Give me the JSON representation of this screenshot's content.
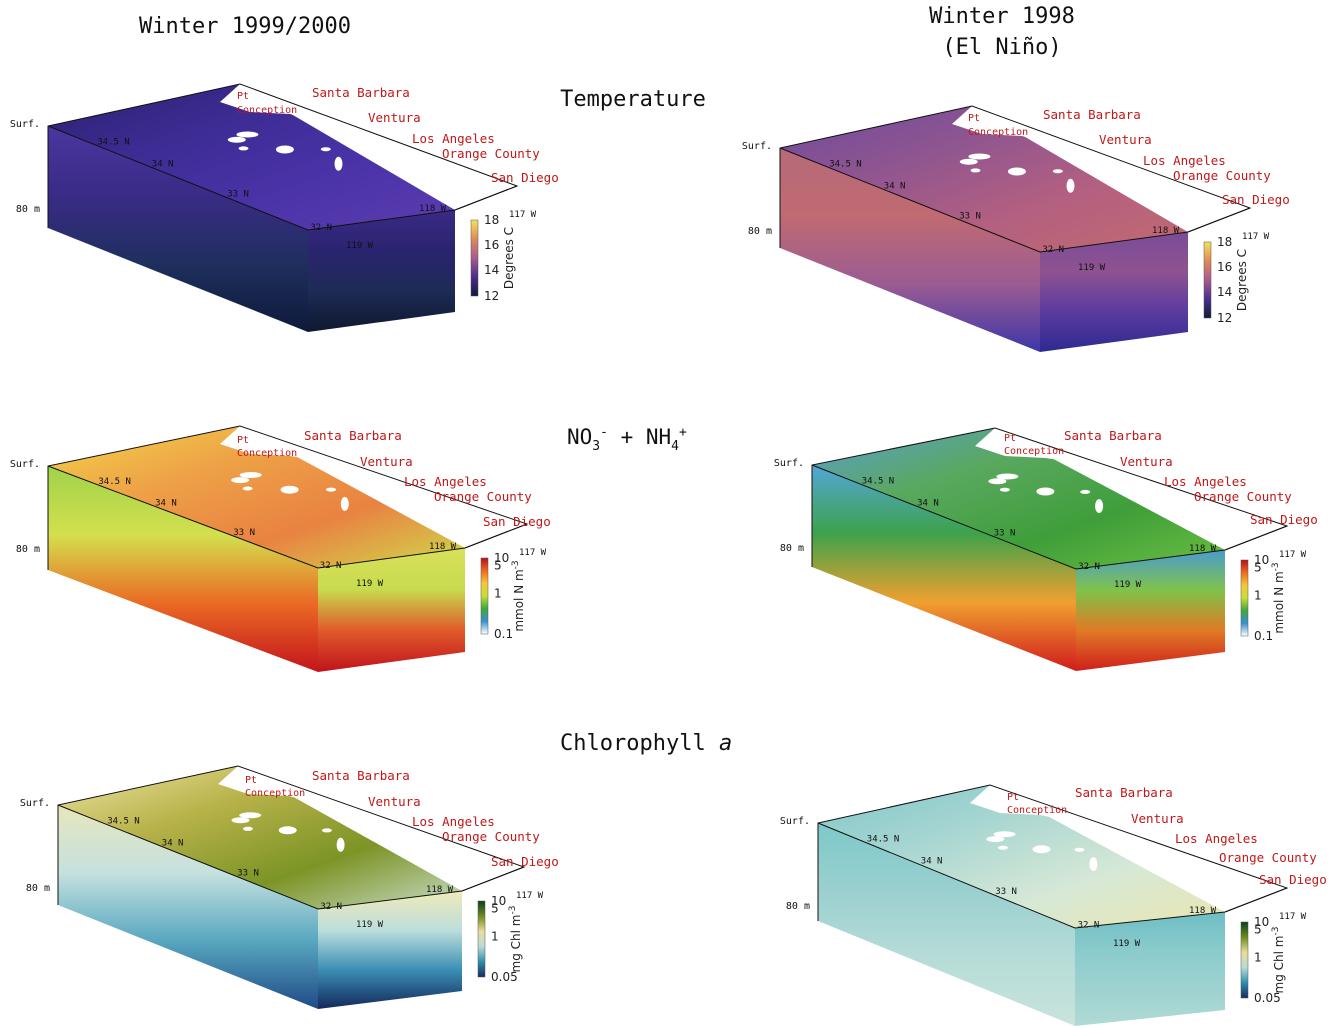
{
  "columns": [
    {
      "title": "Winter 1999/2000"
    },
    {
      "title": "Winter 1998",
      "subtitle": "(El Niño)"
    }
  ],
  "rows": [
    {
      "title_html": "Temperature",
      "base": "NO",
      "sup1": "",
      "sub1": ""
    },
    {
      "title_html": "",
      "base": "NO",
      "sub1": "3",
      "sup1": "-",
      "mid": " + NH",
      "sub2": "4",
      "sup2": "+"
    },
    {
      "title_html": "Chlorophyll ",
      "italic": "a"
    }
  ],
  "axis": {
    "surface": "Surf.",
    "depth": "80 m",
    "lat": [
      "34.5 N",
      "34 N",
      "33 N",
      "32 N"
    ],
    "lon": [
      "119 W",
      "118 W",
      "117 W"
    ]
  },
  "cities": {
    "pt_conception": [
      "Pt",
      "Conception"
    ],
    "santa_barbara": "Santa Barbara",
    "ventura": "Ventura",
    "los_angeles": "Los Angeles",
    "orange_county": "Orange County",
    "san_diego": "San Diego"
  },
  "colorbars": [
    {
      "label": "Degrees C",
      "ticks": [
        "18",
        "16",
        "14",
        "12"
      ],
      "colors": [
        "#f2e25a",
        "#e08a5a",
        "#a95a8c",
        "#4a2f8c",
        "#0f1a3a"
      ]
    },
    {
      "label": "mmol N m",
      "label_sup": "-3",
      "ticks": [
        "10",
        "5",
        "1",
        "0.1"
      ],
      "colors": [
        "#b80f1c",
        "#ef6a1e",
        "#f2c93a",
        "#c6dd3a",
        "#3fa83c",
        "#3b8fd0",
        "#ffffff"
      ]
    },
    {
      "label": "mg Chl m",
      "label_sup": "-3",
      "ticks": [
        "10",
        "5",
        "1",
        "0.05"
      ],
      "colors": [
        "#0a3f1e",
        "#6f8c1e",
        "#e9dd98",
        "#b7dbd8",
        "#2e8fad",
        "#172a63"
      ]
    }
  ],
  "panels": [
    {
      "top": [
        "#2a1f6e",
        "#3c2c93",
        "#4b33a8",
        "#5b3db0"
      ],
      "side": [
        "#3a2a86",
        "#2a2470",
        "#1d2b55",
        "#0f1830"
      ],
      "front": [
        "#4b36a0",
        "#3a2b86",
        "#1f2f5e",
        "#0e1a3a"
      ]
    },
    {
      "top": [
        "#6e4a9e",
        "#8e5590",
        "#b46080",
        "#c16a70"
      ],
      "side": [
        "#7a4c98",
        "#8e5290",
        "#5a3ba0",
        "#2d2a90"
      ],
      "front": [
        "#b66a78",
        "#c06a72",
        "#9b5c92",
        "#3e36a8"
      ]
    },
    {
      "top": [
        "#f2d64a",
        "#eea247",
        "#e98242",
        "#cfdb4b"
      ],
      "side": [
        "#d8e05a",
        "#c8db4e",
        "#e05a2a",
        "#c0121c"
      ],
      "front": [
        "#9fd24a",
        "#d3e04e",
        "#ea6a24",
        "#c4141c"
      ]
    },
    {
      "top": [
        "#5b9ed2",
        "#5aa860",
        "#3f9e3a",
        "#6bbf40"
      ],
      "side": [
        "#4a9bd0",
        "#7fc24a",
        "#e07a24",
        "#cf1e1c"
      ],
      "front": [
        "#52a6d8",
        "#3ea24a",
        "#f0a030",
        "#d11b1c"
      ]
    },
    {
      "top": [
        "#efe6a6",
        "#b8b24a",
        "#7c9426",
        "#c9dcc8"
      ],
      "side": [
        "#f0eab8",
        "#bcdedc",
        "#3b8fb4",
        "#12285a"
      ],
      "front": [
        "#e7e6bc",
        "#c5e1df",
        "#58a7c0",
        "#1f4b87"
      ]
    },
    {
      "top": [
        "#7ec6c8",
        "#a8d6d2",
        "#d6e8d6",
        "#eae6b0"
      ],
      "side": [
        "#6ebdc4",
        "#8acbcc",
        "#9dd2cf",
        "#b0dad6"
      ],
      "front": [
        "#7ec8ca",
        "#9ad0cf",
        "#b6dcd8",
        "#c9e3dc"
      ]
    }
  ]
}
